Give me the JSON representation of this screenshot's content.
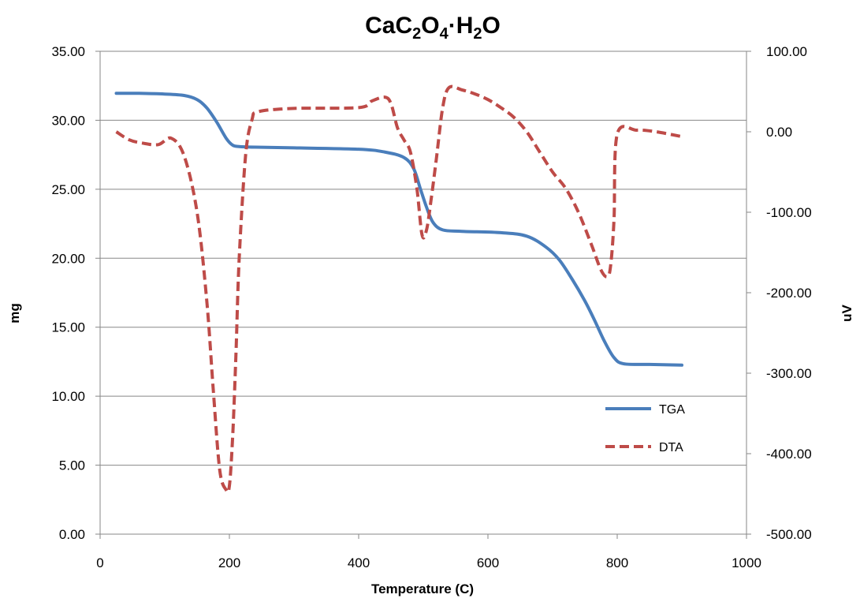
{
  "chart_data": {
    "type": "line",
    "title": "CaC₂O₄·H₂O",
    "title_parts": {
      "a": "CaC",
      "b": "2",
      "c": "O",
      "d": "4",
      "e": "·H",
      "f": "2",
      "g": "O"
    },
    "xlabel": "Temperature (C)",
    "ylabel": "mg",
    "y2label": "uV",
    "xlim": [
      0,
      1000
    ],
    "ylim": [
      0,
      35
    ],
    "y2lim": [
      -500,
      100
    ],
    "x_ticks": [
      "0",
      "200",
      "400",
      "600",
      "800",
      "1000"
    ],
    "y_ticks": [
      "0.00",
      "5.00",
      "10.00",
      "15.00",
      "20.00",
      "25.00",
      "30.00",
      "35.00"
    ],
    "y2_ticks": [
      "-500.00",
      "-400.00",
      "-300.00",
      "-200.00",
      "-100.00",
      "0.00",
      "100.00"
    ],
    "grid": true,
    "legend_position": "lower-right",
    "series": [
      {
        "name": "TGA",
        "axis": "left",
        "color": "#4a7ebb",
        "style": "solid",
        "x": [
          25,
          60,
          100,
          130,
          150,
          165,
          180,
          195,
          205,
          215,
          240,
          300,
          400,
          440,
          470,
          485,
          495,
          505,
          515,
          530,
          560,
          620,
          660,
          690,
          710,
          730,
          750,
          765,
          780,
          795,
          810,
          850,
          900
        ],
        "y": [
          31.95,
          31.95,
          31.9,
          31.8,
          31.5,
          30.9,
          29.9,
          28.7,
          28.2,
          28.1,
          28.05,
          28.0,
          27.9,
          27.7,
          27.3,
          26.5,
          25.1,
          23.7,
          22.6,
          22.05,
          21.95,
          21.85,
          21.6,
          20.8,
          19.9,
          18.5,
          16.9,
          15.5,
          14.0,
          12.8,
          12.35,
          12.3,
          12.25
        ]
      },
      {
        "name": "DTA",
        "axis": "right",
        "color": "#be4b48",
        "style": "dashed",
        "x": [
          25,
          45,
          65,
          90,
          110,
          130,
          150,
          165,
          175,
          185,
          195,
          200,
          205,
          210,
          215,
          225,
          235,
          245,
          300,
          400,
          420,
          440,
          450,
          460,
          470,
          480,
          490,
          498,
          505,
          512,
          520,
          530,
          540,
          560,
          580,
          600,
          620,
          640,
          660,
          680,
          700,
          720,
          740,
          760,
          775,
          785,
          790,
          795,
          800,
          830,
          860,
          900
        ],
        "y": [
          0,
          -10,
          -14,
          -16,
          -8,
          -30,
          -100,
          -210,
          -320,
          -420,
          -445,
          -440,
          -380,
          -280,
          -160,
          -30,
          15,
          25,
          29,
          30,
          38,
          43,
          35,
          5,
          -10,
          -25,
          -70,
          -128,
          -122,
          -85,
          -35,
          30,
          55,
          52,
          47,
          40,
          30,
          18,
          0,
          -25,
          -50,
          -70,
          -100,
          -140,
          -172,
          -180,
          -165,
          -110,
          -3,
          2,
          0,
          -6
        ]
      }
    ]
  }
}
